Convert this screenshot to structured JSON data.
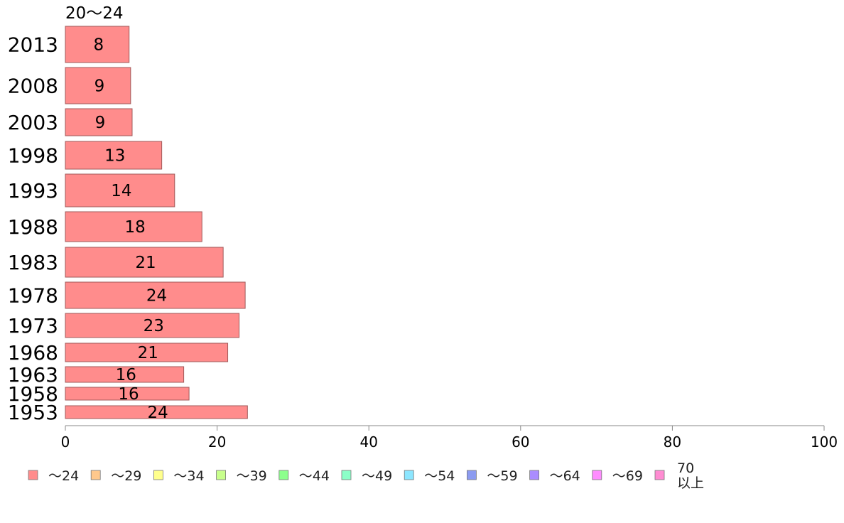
{
  "chart_data": {
    "type": "bar",
    "orientation": "horizontal",
    "column_header": "20〜24",
    "categories": [
      "2013",
      "2008",
      "2003",
      "1998",
      "1993",
      "1988",
      "1983",
      "1978",
      "1973",
      "1968",
      "1963",
      "1958",
      "1953"
    ],
    "values": [
      8.4,
      8.6,
      8.8,
      12.7,
      14.4,
      18.0,
      20.8,
      23.7,
      22.9,
      21.4,
      15.6,
      16.3,
      24.0
    ],
    "labels": [
      "8",
      "9",
      "9",
      "13",
      "14",
      "18",
      "21",
      "24",
      "23",
      "21",
      "16",
      "16",
      "24"
    ],
    "series_color": "#ff8c8c",
    "bar_border_color": "#a05a5a",
    "xlim": [
      0,
      100
    ],
    "xticks": [
      "0",
      "20",
      "40",
      "60",
      "80",
      "100"
    ],
    "legend": {
      "placement": "bottom",
      "items": [
        {
          "label": "〜24",
          "color": "#ff8c8c"
        },
        {
          "label": "〜29",
          "color": "#ffc88c"
        },
        {
          "label": "〜34",
          "color": "#ffff8c"
        },
        {
          "label": "〜39",
          "color": "#c8ff8c"
        },
        {
          "label": "〜44",
          "color": "#8cff8c"
        },
        {
          "label": "〜49",
          "color": "#8cffc8"
        },
        {
          "label": "〜54",
          "color": "#8ce6ff"
        },
        {
          "label": "〜59",
          "color": "#8c9bf0"
        },
        {
          "label": "〜64",
          "color": "#aa8cff"
        },
        {
          "label": "〜69",
          "color": "#ff8cff"
        },
        {
          "label": "70\n以上",
          "color": "#ff8cd2"
        }
      ]
    }
  }
}
